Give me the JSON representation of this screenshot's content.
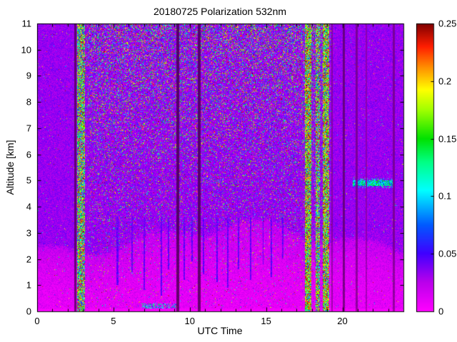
{
  "chart_data": {
    "type": "heatmap",
    "title": "20180725 Polarization 532nm",
    "xlabel": "UTC Time",
    "ylabel": "Altitude [km]",
    "xlim": [
      0,
      24
    ],
    "ylim": [
      0,
      11
    ],
    "x_ticks": [
      0,
      5,
      10,
      15,
      20
    ],
    "x_tick_labels": [
      "0",
      "5",
      "10",
      "15",
      "20"
    ],
    "x_minor_tick_step": 1,
    "y_ticks": [
      0,
      1,
      2,
      3,
      4,
      5,
      6,
      7,
      8,
      9,
      10,
      11
    ],
    "y_tick_labels": [
      "0",
      "1",
      "2",
      "3",
      "4",
      "5",
      "6",
      "7",
      "8",
      "9",
      "10",
      "11"
    ],
    "grid": false,
    "seed": 20180725,
    "colorbar": {
      "position": "right",
      "vmin": 0,
      "vmax": 0.25,
      "ticks": [
        0,
        0.05,
        0.1,
        0.15,
        0.2,
        0.25
      ],
      "tick_labels": [
        "0",
        "0.05",
        "0.1",
        "0.15",
        "0.2",
        "0.25"
      ]
    },
    "colormap_stops": [
      [
        0.0,
        [
          255,
          0,
          255
        ]
      ],
      [
        0.1,
        [
          186,
          0,
          235
        ]
      ],
      [
        0.2,
        [
          64,
          0,
          255
        ]
      ],
      [
        0.3,
        [
          0,
          90,
          255
        ]
      ],
      [
        0.42,
        [
          0,
          255,
          255
        ]
      ],
      [
        0.52,
        [
          0,
          255,
          130
        ]
      ],
      [
        0.6,
        [
          0,
          225,
          0
        ]
      ],
      [
        0.7,
        [
          160,
          255,
          0
        ]
      ],
      [
        0.77,
        [
          255,
          255,
          0
        ]
      ],
      [
        0.85,
        [
          255,
          140,
          0
        ]
      ],
      [
        0.92,
        [
          255,
          30,
          0
        ]
      ],
      [
        1.0,
        [
          128,
          0,
          0
        ]
      ]
    ],
    "background": {
      "molecular_base": 0.022,
      "molecular_noise": 0.02,
      "aerosol_base": 0.003,
      "aerosol_noise": 0.02
    },
    "speckle": {
      "night_prob": 0.012,
      "day_base": 0.05,
      "day_alt_coeff": 0.38,
      "alt_exp": 1.6,
      "bl_factor": 0.5
    },
    "features": {
      "daytime_window": {
        "start": 2.9,
        "ramp_in": 0.6,
        "end": 19.0,
        "ramp_out": 0.35
      },
      "boundary_layer": {
        "base": 2.2,
        "peak_amp": 1.1,
        "peak_time": 13.5,
        "peak_width": 55,
        "wiggle_amp": 0.25
      },
      "bright_bands": [
        {
          "t0": 2.58,
          "t1": 3.1,
          "bias": 0.8
        },
        {
          "t0": 17.55,
          "t1": 17.98,
          "bias": 0.55
        },
        {
          "t0": 18.28,
          "t1": 18.52,
          "bias": 0.9
        },
        {
          "t0": 18.72,
          "t1": 19.15,
          "bias": 0.6
        }
      ],
      "data_gaps": [
        {
          "t0": 2.42,
          "t1": 2.56,
          "darken": 0.5
        },
        {
          "t0": 9.1,
          "t1": 9.32,
          "darken": 0.45
        },
        {
          "t0": 10.52,
          "t1": 10.72,
          "darken": 0.45
        },
        {
          "t0": 19.3,
          "t1": 19.4,
          "darken": 0.7
        },
        {
          "t0": 20.02,
          "t1": 20.18,
          "darken": 0.55
        },
        {
          "t0": 20.9,
          "t1": 21.02,
          "darken": 0.65
        },
        {
          "t0": 21.55,
          "t1": 21.64,
          "darken": 0.75
        },
        {
          "t0": 23.32,
          "t1": 23.44,
          "darken": 0.65
        }
      ],
      "cloud_layer": {
        "t0": 20.7,
        "t1": 23.35,
        "altitude": 4.9,
        "half_thickness": 0.1,
        "value_min": 0.06,
        "value_max": 0.16
      },
      "virga_streaks": [
        {
          "t": 5.25,
          "w": 0.1,
          "z_bottom": 1.0
        },
        {
          "t": 6.2,
          "w": 0.08,
          "z_bottom": 1.5
        },
        {
          "t": 7.0,
          "w": 0.07,
          "z_bottom": 0.8
        },
        {
          "t": 8.15,
          "w": 0.1,
          "z_bottom": 0.6
        },
        {
          "t": 8.6,
          "w": 0.06,
          "z_bottom": 1.6
        },
        {
          "t": 9.65,
          "w": 0.09,
          "z_bottom": 1.2
        },
        {
          "t": 10.15,
          "w": 0.06,
          "z_bottom": 1.9
        },
        {
          "t": 10.9,
          "w": 0.08,
          "z_bottom": 1.4
        },
        {
          "t": 11.8,
          "w": 0.07,
          "z_bottom": 1.1
        },
        {
          "t": 12.5,
          "w": 0.09,
          "z_bottom": 0.9
        },
        {
          "t": 13.2,
          "w": 0.07,
          "z_bottom": 1.6
        },
        {
          "t": 14.0,
          "w": 0.08,
          "z_bottom": 1.2
        },
        {
          "t": 14.8,
          "w": 0.06,
          "z_bottom": 1.8
        },
        {
          "t": 15.35,
          "w": 0.07,
          "z_bottom": 1.3
        },
        {
          "t": 16.1,
          "w": 0.06,
          "z_bottom": 2.0
        }
      ],
      "near_surface_feature": {
        "t0": 6.8,
        "t1": 9.05,
        "z0": 0.1,
        "z1": 0.3,
        "density": 0.45,
        "value_min": 0.05,
        "value_max": 0.15
      },
      "surface_band": {
        "z_top": 0.1,
        "value_min": 0.001,
        "value_max": 0.006
      }
    }
  }
}
